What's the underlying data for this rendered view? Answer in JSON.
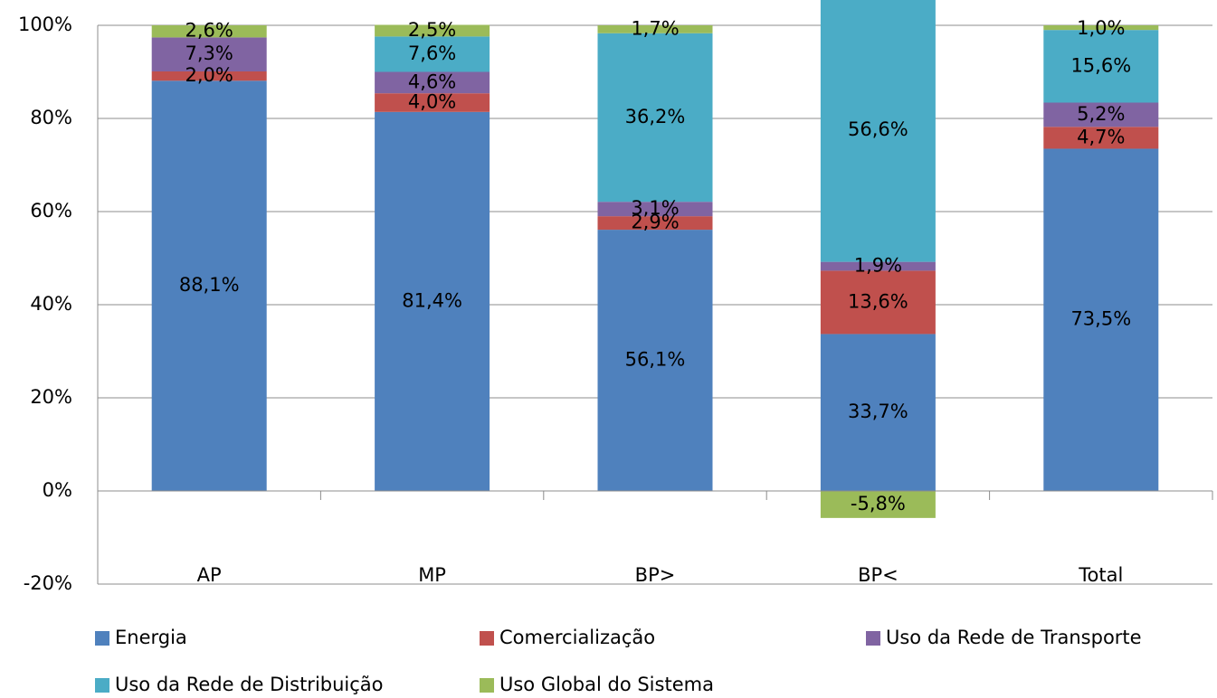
{
  "chart_data": {
    "type": "stacked_bar",
    "categories": [
      "AP",
      "MP",
      "BP>",
      "BP<",
      "Total"
    ],
    "series": [
      {
        "name": "Energia",
        "color": "#4f81bd",
        "values": [
          88.1,
          81.4,
          56.1,
          33.7,
          73.5
        ],
        "value_labels": [
          "88,1%",
          "81,4%",
          "56,1%",
          "33,7%",
          "73,5%"
        ]
      },
      {
        "name": "Comercialização",
        "color": "#c0504d",
        "values": [
          2.0,
          4.0,
          2.9,
          13.6,
          4.7
        ],
        "value_labels": [
          "2,0%",
          "4,0%",
          "2,9%",
          "13,6%",
          "4,7%"
        ]
      },
      {
        "name": "Uso da Rede de Transporte",
        "color": "#8064a2",
        "values": [
          7.3,
          4.6,
          3.1,
          1.9,
          5.2
        ],
        "value_labels": [
          "7,3%",
          "4,6%",
          "3,1%",
          "1,9%",
          "5,2%"
        ]
      },
      {
        "name": "Uso da Rede de Distribuição",
        "color": "#4bacc6",
        "values": [
          null,
          7.6,
          36.2,
          56.6,
          15.6
        ],
        "value_labels": [
          null,
          "7,6%",
          "36,2%",
          "56,6%",
          "15,6%"
        ]
      },
      {
        "name": "Uso Global do Sistema",
        "color": "#9bbb59",
        "values": [
          2.6,
          2.5,
          1.7,
          -5.8,
          1.0
        ],
        "value_labels": [
          "2,6%",
          "2,5%",
          "1,7%",
          "-5,8%",
          "1,0%"
        ]
      }
    ],
    "ylim": [
      -20,
      100
    ],
    "yticks": [
      {
        "value": -20,
        "label": "-20%"
      },
      {
        "value": 0,
        "label": "0%"
      },
      {
        "value": 20,
        "label": "20%"
      },
      {
        "value": 40,
        "label": "40%"
      },
      {
        "value": 60,
        "label": "60%"
      },
      {
        "value": 80,
        "label": "80%"
      },
      {
        "value": 100,
        "label": "100%"
      }
    ],
    "grid": true,
    "legend": "bottom"
  }
}
